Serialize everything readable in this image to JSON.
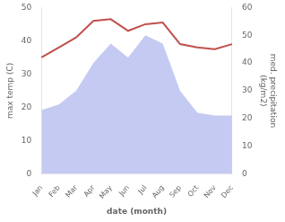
{
  "chart_data": {
    "type": "line",
    "xlabel": "date (month)",
    "ylabel": "max temp (C)",
    "y2label": "med. precipitation\n(kg/m2)",
    "categories": [
      "Jan",
      "Feb",
      "Mar",
      "Apr",
      "May",
      "Jun",
      "Jul",
      "Aug",
      "Sep",
      "Oct",
      "Nov",
      "Dec"
    ],
    "series": [
      {
        "type": "area",
        "color": "#c5caf2",
        "axis": "y2",
        "values": [
          23,
          25,
          30,
          40,
          47,
          42,
          50,
          47,
          30,
          22,
          21,
          21
        ]
      },
      {
        "type": "line",
        "color": "#c0504d",
        "values": [
          35,
          38,
          41,
          46,
          46.5,
          43,
          45,
          45.5,
          39,
          38,
          37.5,
          39
        ]
      }
    ],
    "ylim": [
      0,
      50
    ],
    "yticks": [
      0,
      10,
      20,
      30,
      40,
      50
    ],
    "y2lim": [
      0,
      60
    ],
    "y2ticks": [
      0,
      10,
      20,
      30,
      40,
      50,
      60
    ],
    "grid": false
  }
}
